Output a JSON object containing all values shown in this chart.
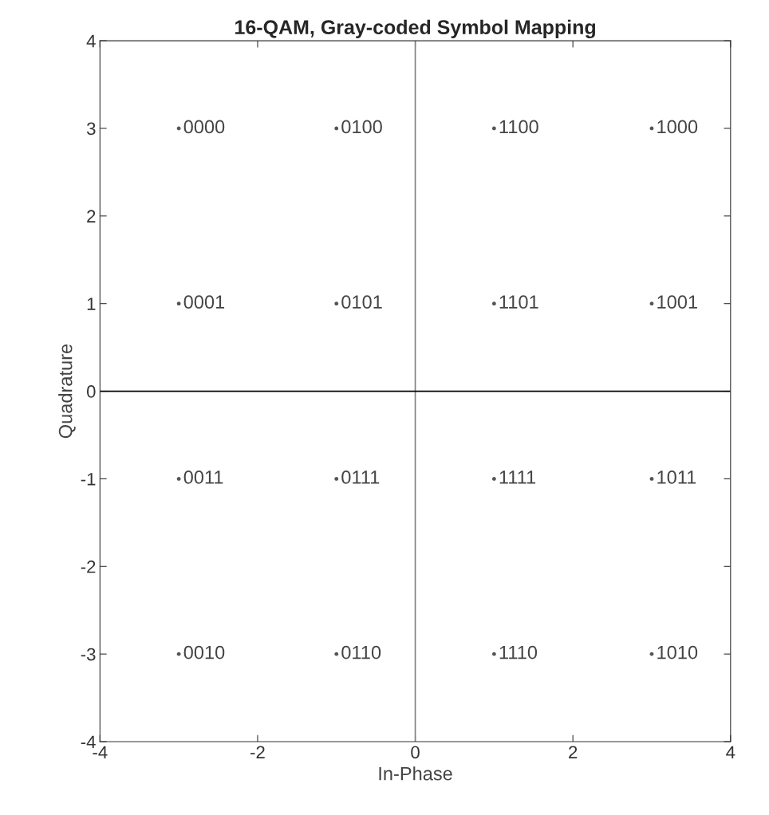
{
  "chart_data": {
    "type": "scatter",
    "title": "16-QAM, Gray-coded Symbol Mapping",
    "xlabel": "In-Phase",
    "ylabel": "Quadrature",
    "x": [
      -3,
      -1,
      1,
      3,
      -3,
      -1,
      1,
      3,
      -3,
      -1,
      1,
      3,
      -3,
      -1,
      1,
      3
    ],
    "values": [
      3,
      3,
      3,
      3,
      1,
      1,
      1,
      1,
      -1,
      -1,
      -1,
      -1,
      -3,
      -3,
      -3,
      -3
    ],
    "color": "#555555",
    "marker": "circle",
    "grid": false,
    "xlim": [
      -4,
      4
    ],
    "ylim": [
      -4,
      4
    ],
    "xticks": [
      -4,
      -2,
      0,
      2,
      4
    ],
    "yticks": [
      -4,
      -3,
      -2,
      -1,
      0,
      1,
      2,
      3,
      4
    ],
    "ref_lines": [
      {
        "axis": "x",
        "value": 0,
        "color": "#808080"
      },
      {
        "axis": "y",
        "value": 0,
        "color": "#000000"
      }
    ],
    "annotations": [
      {
        "text": "0000",
        "x": -3,
        "y": 3
      },
      {
        "text": "0100",
        "x": -1,
        "y": 3
      },
      {
        "text": "1100",
        "x": 1,
        "y": 3
      },
      {
        "text": "1000",
        "x": 3,
        "y": 3
      },
      {
        "text": "0001",
        "x": -3,
        "y": 1
      },
      {
        "text": "0101",
        "x": -1,
        "y": 1
      },
      {
        "text": "1101",
        "x": 1,
        "y": 1
      },
      {
        "text": "1001",
        "x": 3,
        "y": 1
      },
      {
        "text": "0011",
        "x": -3,
        "y": -1
      },
      {
        "text": "0111",
        "x": -1,
        "y": -1
      },
      {
        "text": "1111",
        "x": 1,
        "y": -1
      },
      {
        "text": "1011",
        "x": 3,
        "y": -1
      },
      {
        "text": "0010",
        "x": -3,
        "y": -3
      },
      {
        "text": "0110",
        "x": -1,
        "y": -3
      },
      {
        "text": "1110",
        "x": 1,
        "y": -3
      },
      {
        "text": "1010",
        "x": 3,
        "y": -3
      }
    ]
  }
}
